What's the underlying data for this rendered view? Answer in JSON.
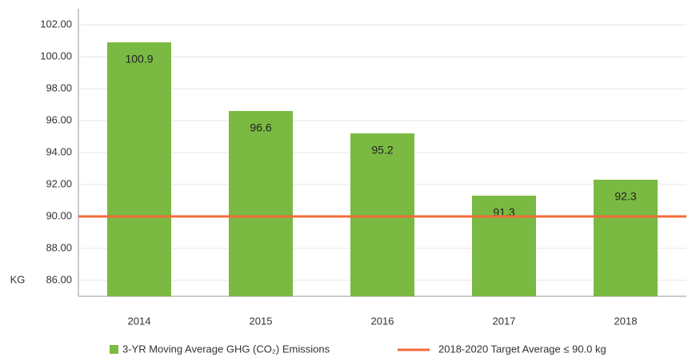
{
  "chart_data": {
    "type": "bar",
    "y_label": "KG",
    "categories": [
      "2014",
      "2015",
      "2016",
      "2017",
      "2018"
    ],
    "series": [
      {
        "name": "3-YR Moving Average GHG (CO₂) Emissions",
        "color": "#7aba42",
        "values": [
          100.9,
          96.6,
          95.2,
          91.3,
          92.3
        ]
      }
    ],
    "target": {
      "name": "2018-2020 Target Average ≤ 90.0 kg",
      "color": "#f26b3a",
      "value": 90
    },
    "ylim": [
      85,
      103
    ],
    "yticks": [
      {
        "value": 86,
        "label": "86.00"
      },
      {
        "value": 88,
        "label": "88.00"
      },
      {
        "value": 90,
        "label": "90.00"
      },
      {
        "value": 92,
        "label": "92.00"
      },
      {
        "value": 94,
        "label": "94.00"
      },
      {
        "value": 96,
        "label": "96.00"
      },
      {
        "value": 98,
        "label": "98.00"
      },
      {
        "value": 100,
        "label": "100.00"
      },
      {
        "value": 102,
        "label": "102.00"
      }
    ],
    "grid": true
  }
}
